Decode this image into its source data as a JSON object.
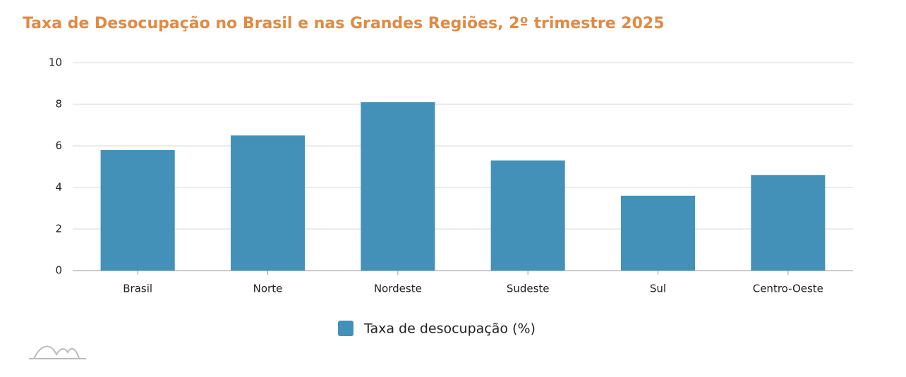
{
  "chart_data": {
    "type": "bar",
    "title": "Taxa de Desocupação no Brasil e nas Grandes Regiões, 2º trimestre 2025",
    "categories": [
      "Brasil",
      "Norte",
      "Nordeste",
      "Sudeste",
      "Sul",
      "Centro-Oeste"
    ],
    "series": [
      {
        "name": "Taxa de desocupação (%)",
        "color": "#4391b8",
        "values": [
          5.8,
          6.5,
          8.1,
          5.3,
          3.6,
          4.6
        ]
      }
    ],
    "ylim": [
      0,
      10
    ],
    "yticks": [
      0,
      2,
      4,
      6,
      8,
      10
    ],
    "grid": true,
    "legend": "bottom"
  }
}
